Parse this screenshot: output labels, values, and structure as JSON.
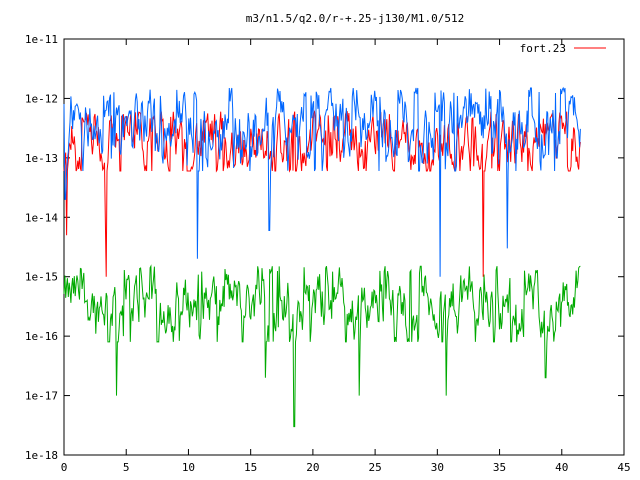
{
  "chart_data": {
    "type": "line",
    "title": "m3/n1.5/q2.0/r-+.25-j130/M1.0/512",
    "xlabel": "",
    "ylabel": "",
    "xlim": [
      0,
      45
    ],
    "ylim": [
      1e-18,
      1e-11
    ],
    "yscale": "log",
    "grid": false,
    "legend_position": "top-right",
    "x_ticks": [
      "0",
      "5",
      "10",
      "15",
      "20",
      "25",
      "30",
      "35",
      "40",
      "45"
    ],
    "y_ticks": [
      "1e-11",
      "1e-12",
      "1e-13",
      "1e-14",
      "1e-15",
      "1e-16",
      "1e-17",
      "1e-18"
    ],
    "series": [
      {
        "name": "fort.23",
        "color": "#ff0000",
        "x_range": [
          0,
          41.5
        ],
        "typical_value": 2e-13,
        "typical_range": [
          6e-14,
          6e-13
        ],
        "dips": [
          [
            0.2,
            5e-15
          ],
          [
            3.3,
            1e-14
          ],
          [
            3.4,
            1e-15
          ],
          [
            33.7,
            1e-15
          ]
        ]
      },
      {
        "name": "",
        "color": "#0066ff",
        "x_range": [
          0,
          41.5
        ],
        "typical_value": 4e-13,
        "typical_range": [
          6e-14,
          1.5e-12
        ],
        "dips": [
          [
            0.1,
            2e-14
          ],
          [
            10.7,
            2e-15
          ],
          [
            16.5,
            6e-15
          ],
          [
            30.2,
            1e-15
          ],
          [
            35.6,
            3e-15
          ]
        ]
      },
      {
        "name": "",
        "color": "#00aa00",
        "x_range": [
          0,
          41.5
        ],
        "typical_value": 4e-16,
        "typical_range": [
          8e-17,
          1.5e-15
        ],
        "dips": [
          [
            4.2,
            1e-17
          ],
          [
            16.2,
            2e-17
          ],
          [
            18.5,
            3e-18
          ],
          [
            23.7,
            1e-17
          ],
          [
            30.7,
            1e-17
          ],
          [
            38.7,
            2e-17
          ]
        ]
      }
    ]
  }
}
